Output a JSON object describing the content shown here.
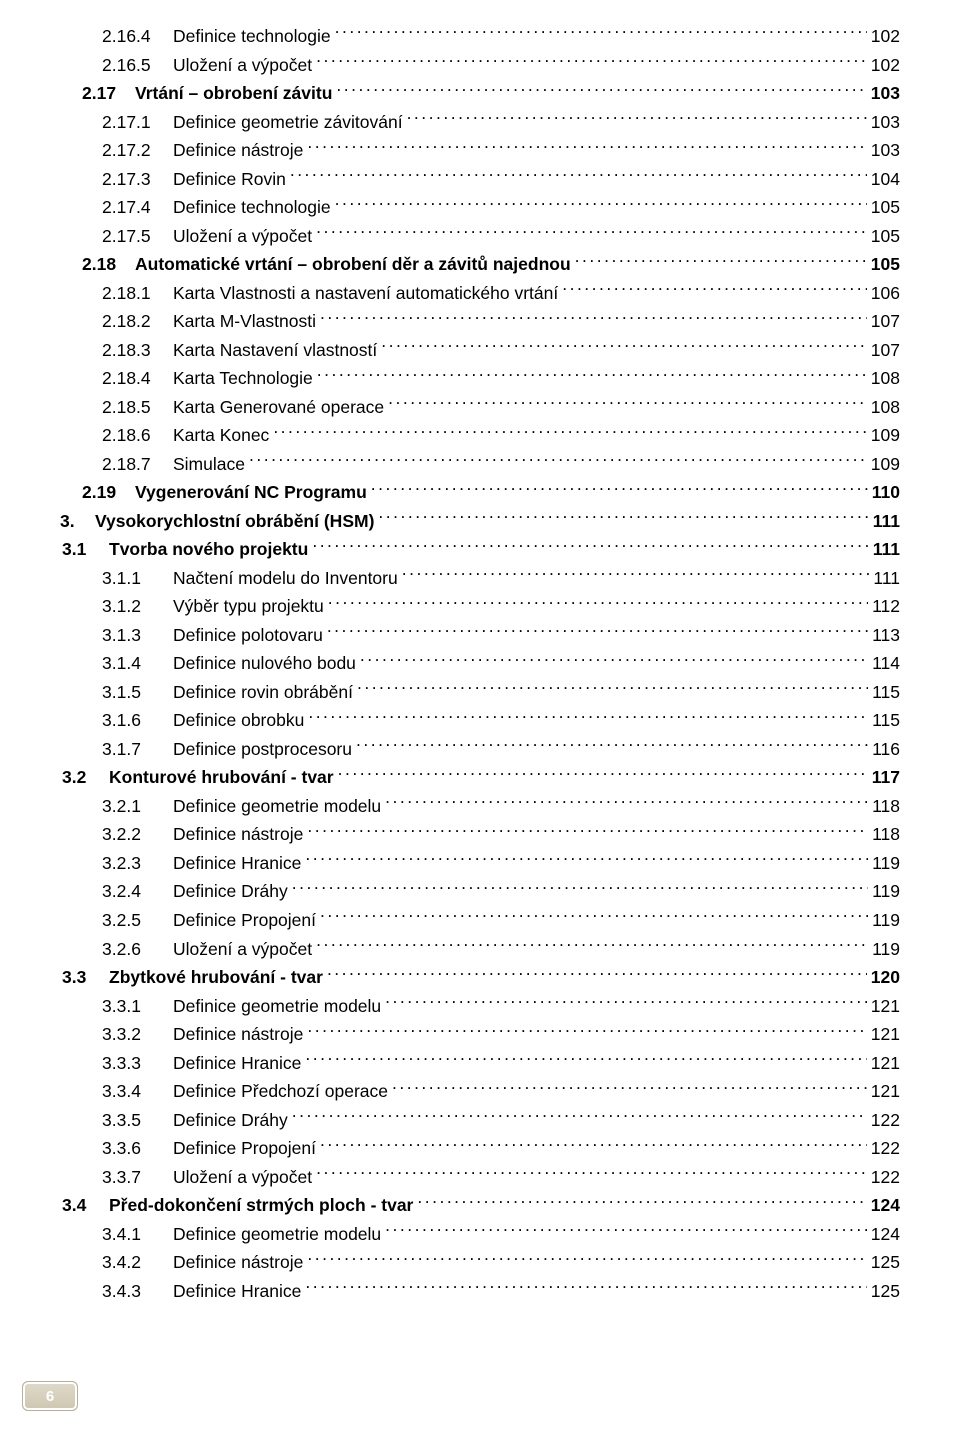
{
  "page_number": "6",
  "toc": [
    {
      "level": "lvl-3",
      "num": "2.16.4",
      "title": "Definice technologie",
      "page": "102"
    },
    {
      "level": "lvl-3",
      "num": "2.16.5",
      "title": "Uložení a výpočet",
      "page": "102"
    },
    {
      "level": "lvl-2",
      "num": "2.17",
      "title": "Vrtání – obrobení závitu",
      "page": "103"
    },
    {
      "level": "lvl-3",
      "num": "2.17.1",
      "title": "Definice geometrie závitování",
      "page": "103"
    },
    {
      "level": "lvl-3",
      "num": "2.17.2",
      "title": "Definice nástroje",
      "page": "103"
    },
    {
      "level": "lvl-3",
      "num": "2.17.3",
      "title": "Definice Rovin",
      "page": "104"
    },
    {
      "level": "lvl-3",
      "num": "2.17.4",
      "title": "Definice technologie",
      "page": "105"
    },
    {
      "level": "lvl-3",
      "num": "2.17.5",
      "title": "Uložení a výpočet",
      "page": "105"
    },
    {
      "level": "lvl-2",
      "num": "2.18",
      "title": "Automatické vrtání – obrobení děr a závitů najednou",
      "page": "105"
    },
    {
      "level": "lvl-3",
      "num": "2.18.1",
      "title": "Karta Vlastnosti a nastavení automatického vrtání",
      "page": "106"
    },
    {
      "level": "lvl-3",
      "num": "2.18.2",
      "title": "Karta M-Vlastnosti",
      "page": "107"
    },
    {
      "level": "lvl-3",
      "num": "2.18.3",
      "title": "Karta Nastavení vlastností",
      "page": "107"
    },
    {
      "level": "lvl-3",
      "num": "2.18.4",
      "title": "Karta Technologie",
      "page": "108"
    },
    {
      "level": "lvl-3",
      "num": "2.18.5",
      "title": "Karta Generované operace",
      "page": "108"
    },
    {
      "level": "lvl-3",
      "num": "2.18.6",
      "title": "Karta Konec",
      "page": "109"
    },
    {
      "level": "lvl-3",
      "num": "2.18.7",
      "title": "Simulace",
      "page": "109"
    },
    {
      "level": "lvl-2",
      "num": "2.19",
      "title": "Vygenerování NC Programu",
      "page": "110"
    },
    {
      "level": "lvl-1",
      "num": "3.",
      "title": "Vysokorychlostní obrábění (HSM)",
      "page": "111"
    },
    {
      "level": "lvl-2n",
      "num": "3.1",
      "title": "Tvorba nového projektu",
      "page": "111"
    },
    {
      "level": "lvl-3",
      "num": "3.1.1",
      "title": "Načtení modelu do Inventoru",
      "page": "111"
    },
    {
      "level": "lvl-3",
      "num": "3.1.2",
      "title": "Výběr typu projektu",
      "page": "112"
    },
    {
      "level": "lvl-3",
      "num": "3.1.3",
      "title": "Definice polotovaru",
      "page": "113"
    },
    {
      "level": "lvl-3",
      "num": "3.1.4",
      "title": "Definice nulového bodu",
      "page": "114"
    },
    {
      "level": "lvl-3",
      "num": "3.1.5",
      "title": "Definice rovin obrábění",
      "page": "115"
    },
    {
      "level": "lvl-3",
      "num": "3.1.6",
      "title": "Definice obrobku",
      "page": "115"
    },
    {
      "level": "lvl-3",
      "num": "3.1.7",
      "title": "Definice postprocesoru",
      "page": "116"
    },
    {
      "level": "lvl-2n",
      "num": "3.2",
      "title": "Konturové hrubování - tvar",
      "page": "117"
    },
    {
      "level": "lvl-3",
      "num": "3.2.1",
      "title": "Definice geometrie modelu",
      "page": "118"
    },
    {
      "level": "lvl-3",
      "num": "3.2.2",
      "title": "Definice nástroje",
      "page": "118"
    },
    {
      "level": "lvl-3",
      "num": "3.2.3",
      "title": "Definice Hranice",
      "page": "119"
    },
    {
      "level": "lvl-3",
      "num": "3.2.4",
      "title": "Definice Dráhy",
      "page": "119"
    },
    {
      "level": "lvl-3",
      "num": "3.2.5",
      "title": "Definice Propojení",
      "page": "119"
    },
    {
      "level": "lvl-3",
      "num": "3.2.6",
      "title": "Uložení a výpočet",
      "page": "119"
    },
    {
      "level": "lvl-2n",
      "num": "3.3",
      "title": "Zbytkové hrubování - tvar",
      "page": "120"
    },
    {
      "level": "lvl-3",
      "num": "3.3.1",
      "title": "Definice geometrie modelu",
      "page": "121"
    },
    {
      "level": "lvl-3",
      "num": "3.3.2",
      "title": "Definice nástroje",
      "page": "121"
    },
    {
      "level": "lvl-3",
      "num": "3.3.3",
      "title": "Definice Hranice",
      "page": "121"
    },
    {
      "level": "lvl-3",
      "num": "3.3.4",
      "title": "Definice Předchozí operace",
      "page": "121"
    },
    {
      "level": "lvl-3",
      "num": "3.3.5",
      "title": "Definice Dráhy",
      "page": "122"
    },
    {
      "level": "lvl-3",
      "num": "3.3.6",
      "title": "Definice Propojení",
      "page": "122"
    },
    {
      "level": "lvl-3",
      "num": "3.3.7",
      "title": "Uložení a výpočet",
      "page": "122"
    },
    {
      "level": "lvl-2n",
      "num": "3.4",
      "title": "Před-dokončení strmých ploch - tvar",
      "page": "124"
    },
    {
      "level": "lvl-3",
      "num": "3.4.1",
      "title": "Definice geometrie modelu",
      "page": "124"
    },
    {
      "level": "lvl-3",
      "num": "3.4.2",
      "title": "Definice nástroje",
      "page": "125"
    },
    {
      "level": "lvl-3",
      "num": "3.4.3",
      "title": "Definice Hranice",
      "page": "125"
    }
  ]
}
